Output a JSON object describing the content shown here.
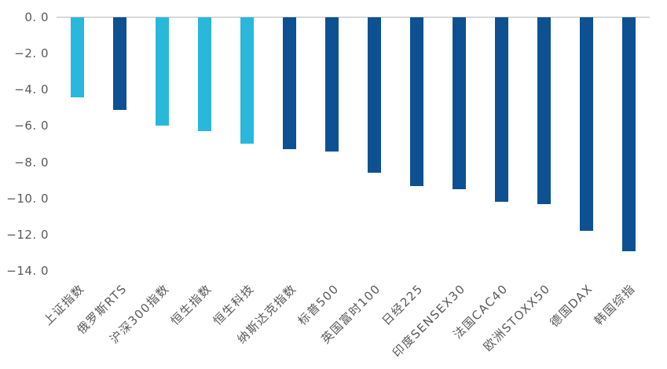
{
  "colors": {
    "background": "#FFFFFF",
    "axis_line": "#D9D9D9",
    "tick_text": "#595959",
    "bar_highlight": "#29B8DC",
    "bar_default": "#0D5192"
  },
  "chart_data": {
    "type": "bar",
    "orientation": "vertical-negative",
    "categories": [
      "上证指数",
      "俄罗斯RTS",
      "沪深300指数",
      "恒生指数",
      "恒生科技",
      "纳斯达克指数",
      "标普500",
      "英国富时100",
      "日经225",
      "印度SENSEX30",
      "法国CAC40",
      "欧洲STOXX50",
      "德国DAX",
      "韩国综指"
    ],
    "values": [
      -4.4,
      -5.1,
      -6.0,
      -6.3,
      -7.0,
      -7.3,
      -7.4,
      -8.6,
      -9.3,
      -9.5,
      -10.2,
      -10.3,
      -11.8,
      -12.9
    ],
    "bar_color_keys": [
      "highlight",
      "default",
      "highlight",
      "highlight",
      "highlight",
      "default",
      "default",
      "default",
      "default",
      "default",
      "default",
      "default",
      "default",
      "default"
    ],
    "yticks": [
      0,
      -2,
      -4,
      -6,
      -8,
      -10,
      -12,
      -14
    ],
    "ytick_labels": [
      "0. 0",
      "−2. 0",
      "−4. 0",
      "−6. 0",
      "−8. 0",
      "−10. 0",
      "−12. 0",
      "−14. 0"
    ],
    "ylim": [
      -14,
      0
    ],
    "grid": false,
    "legend": "none",
    "xlabel": "",
    "ylabel": ""
  }
}
